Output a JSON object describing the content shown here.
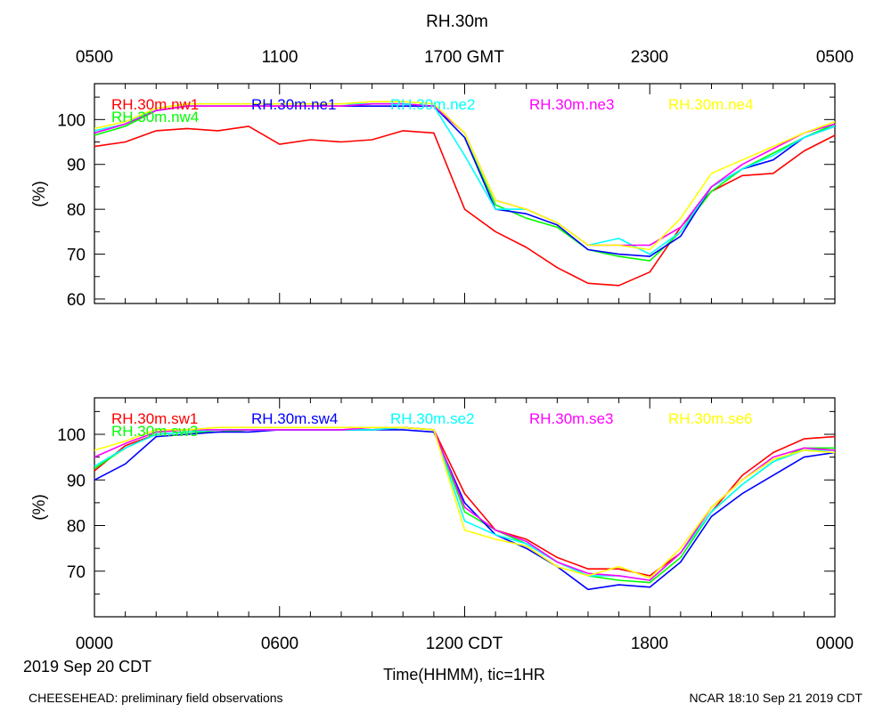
{
  "title": "RH.30m",
  "top_axis_labels": [
    "0500",
    "1100",
    "1700 GMT",
    "2300",
    "0500"
  ],
  "bottom_axis_labels": [
    "0000",
    "0600",
    "1200 CDT",
    "1800",
    "0000"
  ],
  "date_label": "2019 Sep 20 CDT",
  "xlabel": "Time(HHMM), tic=1HR",
  "footer_left": "CHEESEHEAD: preliminary field observations",
  "footer_right": "NCAR 18:10 Sep 21 2019 CDT",
  "chart_data": [
    {
      "type": "line",
      "panel": "upper",
      "ylabel": "(%)",
      "ylim": [
        59,
        108
      ],
      "xlim": [
        0,
        24
      ],
      "yticks": [
        60,
        70,
        80,
        90,
        100
      ],
      "x": [
        0,
        1,
        2,
        3,
        4,
        5,
        6,
        7,
        8,
        9,
        10,
        11,
        12,
        13,
        14,
        15,
        16,
        17,
        18,
        19,
        20,
        21,
        22,
        23,
        24
      ],
      "series": [
        {
          "name": "RH.30m.nw1",
          "color": "#ff0000",
          "values": [
            94,
            95,
            97.5,
            98,
            97.5,
            98.5,
            94.5,
            95.5,
            95,
            95.5,
            97.5,
            97,
            80,
            75,
            71.5,
            67,
            63.5,
            63,
            66,
            76,
            84,
            87.5,
            88,
            93,
            96.5
          ]
        },
        {
          "name": "RH.30m.nw4",
          "color": "#00ff00",
          "values": [
            96.5,
            98.5,
            102,
            103,
            103,
            103,
            103,
            103,
            103,
            103.5,
            103.5,
            103,
            96,
            81,
            78,
            76,
            71,
            69.5,
            68.5,
            75,
            84,
            89,
            92.5,
            96,
            99
          ]
        },
        {
          "name": "RH.30m.ne1",
          "color": "#0000ff",
          "values": [
            97,
            99,
            102,
            103,
            103,
            103,
            103,
            103,
            103,
            103,
            103,
            103,
            96,
            80,
            79,
            76.5,
            71,
            70,
            69.5,
            74,
            85,
            89,
            91,
            96,
            98.5
          ]
        },
        {
          "name": "RH.30m.ne2",
          "color": "#00ffff",
          "values": [
            97.5,
            99,
            102.5,
            103.5,
            103.5,
            103.5,
            103.5,
            103.5,
            103.5,
            103.5,
            103.5,
            103,
            92,
            80,
            80,
            77,
            72,
            73.5,
            70,
            75,
            85,
            89,
            92,
            96,
            98.5
          ]
        },
        {
          "name": "RH.30m.ne3",
          "color": "#ff00ff",
          "values": [
            97,
            99,
            102,
            103,
            103,
            103,
            103,
            103,
            103,
            103.5,
            103.5,
            103,
            97,
            82,
            80,
            77,
            72,
            72,
            72,
            76,
            85,
            90,
            93.5,
            97,
            99
          ]
        },
        {
          "name": "RH.30m.ne4",
          "color": "#ffff00",
          "values": [
            98,
            99.5,
            102.5,
            103.5,
            103.5,
            103.5,
            103.5,
            103.5,
            103.5,
            104,
            104,
            103.5,
            97,
            82,
            80,
            77,
            72,
            72,
            71,
            78,
            88,
            91,
            94,
            97,
            99.5
          ]
        }
      ]
    },
    {
      "type": "line",
      "panel": "lower",
      "ylabel": "(%)",
      "ylim": [
        60,
        108
      ],
      "xlim": [
        0,
        24
      ],
      "yticks": [
        70,
        80,
        90,
        100
      ],
      "x": [
        0,
        1,
        2,
        3,
        4,
        5,
        6,
        7,
        8,
        9,
        10,
        11,
        12,
        13,
        14,
        15,
        16,
        17,
        18,
        19,
        20,
        21,
        22,
        23,
        24
      ],
      "series": [
        {
          "name": "RH.30m.sw1",
          "color": "#ff0000",
          "values": [
            92,
            97.5,
            100,
            100.5,
            100.5,
            101,
            101,
            101,
            101,
            101,
            101.5,
            101,
            87,
            79,
            77,
            73,
            70.5,
            70.5,
            69,
            74,
            83,
            91,
            96,
            99,
            99.5
          ]
        },
        {
          "name": "RH.30m.sw3",
          "color": "#00ff00",
          "values": [
            92.5,
            97,
            100,
            100.5,
            100.5,
            101,
            101,
            101,
            101,
            101,
            101.5,
            101,
            83,
            79,
            76,
            72,
            69,
            68,
            67.5,
            73,
            83,
            89,
            94,
            97,
            97
          ]
        },
        {
          "name": "RH.30m.sw4",
          "color": "#0000ff",
          "values": [
            90,
            93.5,
            99.5,
            100,
            100.5,
            100.5,
            101,
            101,
            101,
            101,
            101,
            100.5,
            85,
            78,
            75,
            71,
            66,
            67,
            66.5,
            72,
            82,
            87,
            91,
            95,
            96
          ]
        },
        {
          "name": "RH.30m.se2",
          "color": "#00ffff",
          "values": [
            93,
            97,
            100,
            100.5,
            101,
            101,
            101,
            101,
            101,
            101,
            101.5,
            101,
            81,
            78,
            76,
            72,
            69,
            69,
            68,
            74,
            83,
            89,
            94,
            96.5,
            96.5
          ]
        },
        {
          "name": "RH.30m.se3",
          "color": "#ff00ff",
          "values": [
            95,
            98,
            100.5,
            101,
            101,
            101,
            101,
            101,
            101,
            101.5,
            101.5,
            101,
            84,
            79,
            76.5,
            72,
            69.5,
            69,
            68,
            74,
            84,
            90,
            95,
            97,
            96.5
          ]
        },
        {
          "name": "RH.30m.se6",
          "color": "#ffff00",
          "values": [
            96.5,
            98.5,
            101,
            101,
            101.5,
            101.5,
            101.5,
            101.5,
            101.5,
            101.5,
            101.5,
            101,
            79,
            77,
            75.5,
            71,
            69,
            71,
            68.5,
            75,
            84,
            90,
            94.5,
            96.5,
            96
          ]
        }
      ]
    }
  ]
}
